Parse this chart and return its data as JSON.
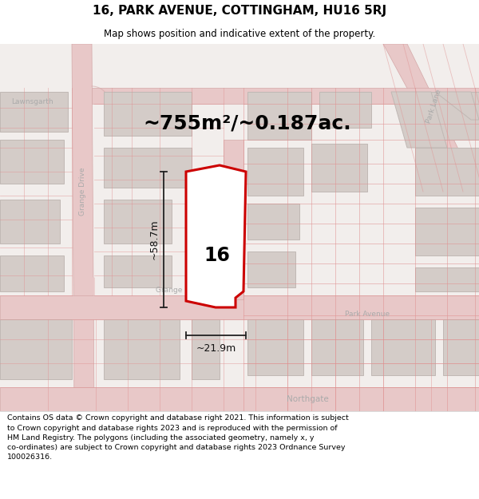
{
  "title": "16, PARK AVENUE, COTTINGHAM, HU16 5RJ",
  "subtitle": "Map shows position and indicative extent of the property.",
  "area_text": "~755m²/~0.187ac.",
  "label_number": "16",
  "dim_height": "~58.7m",
  "dim_width": "~21.9m",
  "footer_lines": [
    "Contains OS data © Crown copyright and database right 2021. This information is subject",
    "to Crown copyright and database rights 2023 and is reproduced with the permission of",
    "HM Land Registry. The polygons (including the associated geometry, namely x, y",
    "co-ordinates) are subject to Crown copyright and database rights 2023 Ordnance Survey",
    "100026316."
  ],
  "map_bg": "#f2eeec",
  "road_fill": "#e8c8c8",
  "road_line": "#d4a8a8",
  "bld_fill": "#d4ccc8",
  "bld_edge": "#c0b8b4",
  "prop_fill": "#ffffff",
  "prop_edge": "#cc0000",
  "street_color": "#aaaaaa",
  "dim_color": "#111111",
  "text_color": "#000000"
}
